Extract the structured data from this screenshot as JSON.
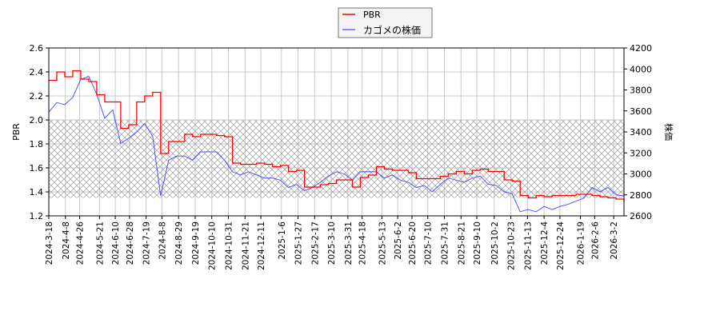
{
  "chart_data": {
    "type": "line",
    "title": "",
    "xlabel": "",
    "ylabel": "PBR",
    "ylabel_right": "株価",
    "ylim": [
      1.2,
      2.6
    ],
    "ylim_right": [
      2600,
      4200
    ],
    "yticks": [
      "1.2",
      "1.4",
      "1.6",
      "1.8",
      "2.0",
      "2.2",
      "2.4",
      "2.6"
    ],
    "yticks_right": [
      "2600",
      "2800",
      "3000",
      "3200",
      "3400",
      "3600",
      "3800",
      "4000",
      "4200"
    ],
    "x_range": [
      "2024-03-18",
      "2026-03-15"
    ],
    "xticks": [
      "2024-3-18",
      "2024-4-8",
      "2024-4-26",
      "2024-5-21",
      "2024-6-10",
      "2024-6-28",
      "2024-7-19",
      "2024-8-8",
      "2024-8-29",
      "2024-9-19",
      "2024-10-10",
      "2024-10-31",
      "2024-11-21",
      "2024-12-11",
      "2025-1-6",
      "2025-1-27",
      "2025-2-17",
      "2025-3-10",
      "2025-3-31",
      "2025-4-18",
      "2025-5-13",
      "2025-6-2",
      "2025-6-20",
      "2025-7-10",
      "2025-7-31",
      "2025-8-21",
      "2025-9-10",
      "2025-10-2",
      "2025-10-23",
      "2025-11-13",
      "2025-12-4",
      "2025-12-24",
      "2026-1-19",
      "2026-2-6",
      "2026-3-2"
    ],
    "grid": true,
    "shaded_band": {
      "axis": "left",
      "from": 1.35,
      "to": 2.0,
      "pattern": "crosshatch"
    },
    "legend": {
      "placement": "top-center",
      "entries": [
        "PBR",
        "カゴメの株価"
      ]
    },
    "series": [
      {
        "name": "PBR",
        "axis": "left",
        "color": "#ff0000",
        "step": true,
        "values": [
          2.33,
          2.4,
          2.36,
          2.41,
          2.34,
          2.32,
          2.21,
          2.15,
          2.15,
          1.93,
          1.96,
          2.15,
          2.2,
          2.23,
          1.72,
          1.82,
          1.82,
          1.88,
          1.86,
          1.88,
          1.88,
          1.87,
          1.86,
          1.64,
          1.63,
          1.63,
          1.64,
          1.63,
          1.61,
          1.62,
          1.57,
          1.58,
          1.44,
          1.44,
          1.46,
          1.47,
          1.5,
          1.5,
          1.44,
          1.52,
          1.54,
          1.61,
          1.59,
          1.58,
          1.58,
          1.56,
          1.51,
          1.51,
          1.51,
          1.53,
          1.55,
          1.57,
          1.55,
          1.58,
          1.59,
          1.57,
          1.57,
          1.5,
          1.49,
          1.37,
          1.35,
          1.37,
          1.36,
          1.37,
          1.37,
          1.37,
          1.38,
          1.38,
          1.37,
          1.36,
          1.35,
          1.34,
          1.32
        ]
      },
      {
        "name": "カゴメの株価",
        "axis": "right",
        "color": "#4444ff",
        "step": false,
        "values": [
          3590,
          3680,
          3660,
          3730,
          3900,
          3930,
          3760,
          3530,
          3610,
          3290,
          3340,
          3400,
          3480,
          3360,
          2790,
          3130,
          3170,
          3170,
          3130,
          3210,
          3210,
          3210,
          3130,
          3020,
          2990,
          3020,
          2990,
          2960,
          2960,
          2940,
          2870,
          2900,
          2840,
          2870,
          2920,
          2980,
          3020,
          3000,
          2940,
          3020,
          3020,
          3020,
          2960,
          2990,
          2940,
          2920,
          2870,
          2890,
          2830,
          2900,
          2960,
          2940,
          2920,
          2960,
          2980,
          2900,
          2890,
          2830,
          2810,
          2640,
          2660,
          2640,
          2690,
          2660,
          2690,
          2710,
          2740,
          2770,
          2870,
          2830,
          2870,
          2800,
          2790
        ]
      }
    ]
  }
}
